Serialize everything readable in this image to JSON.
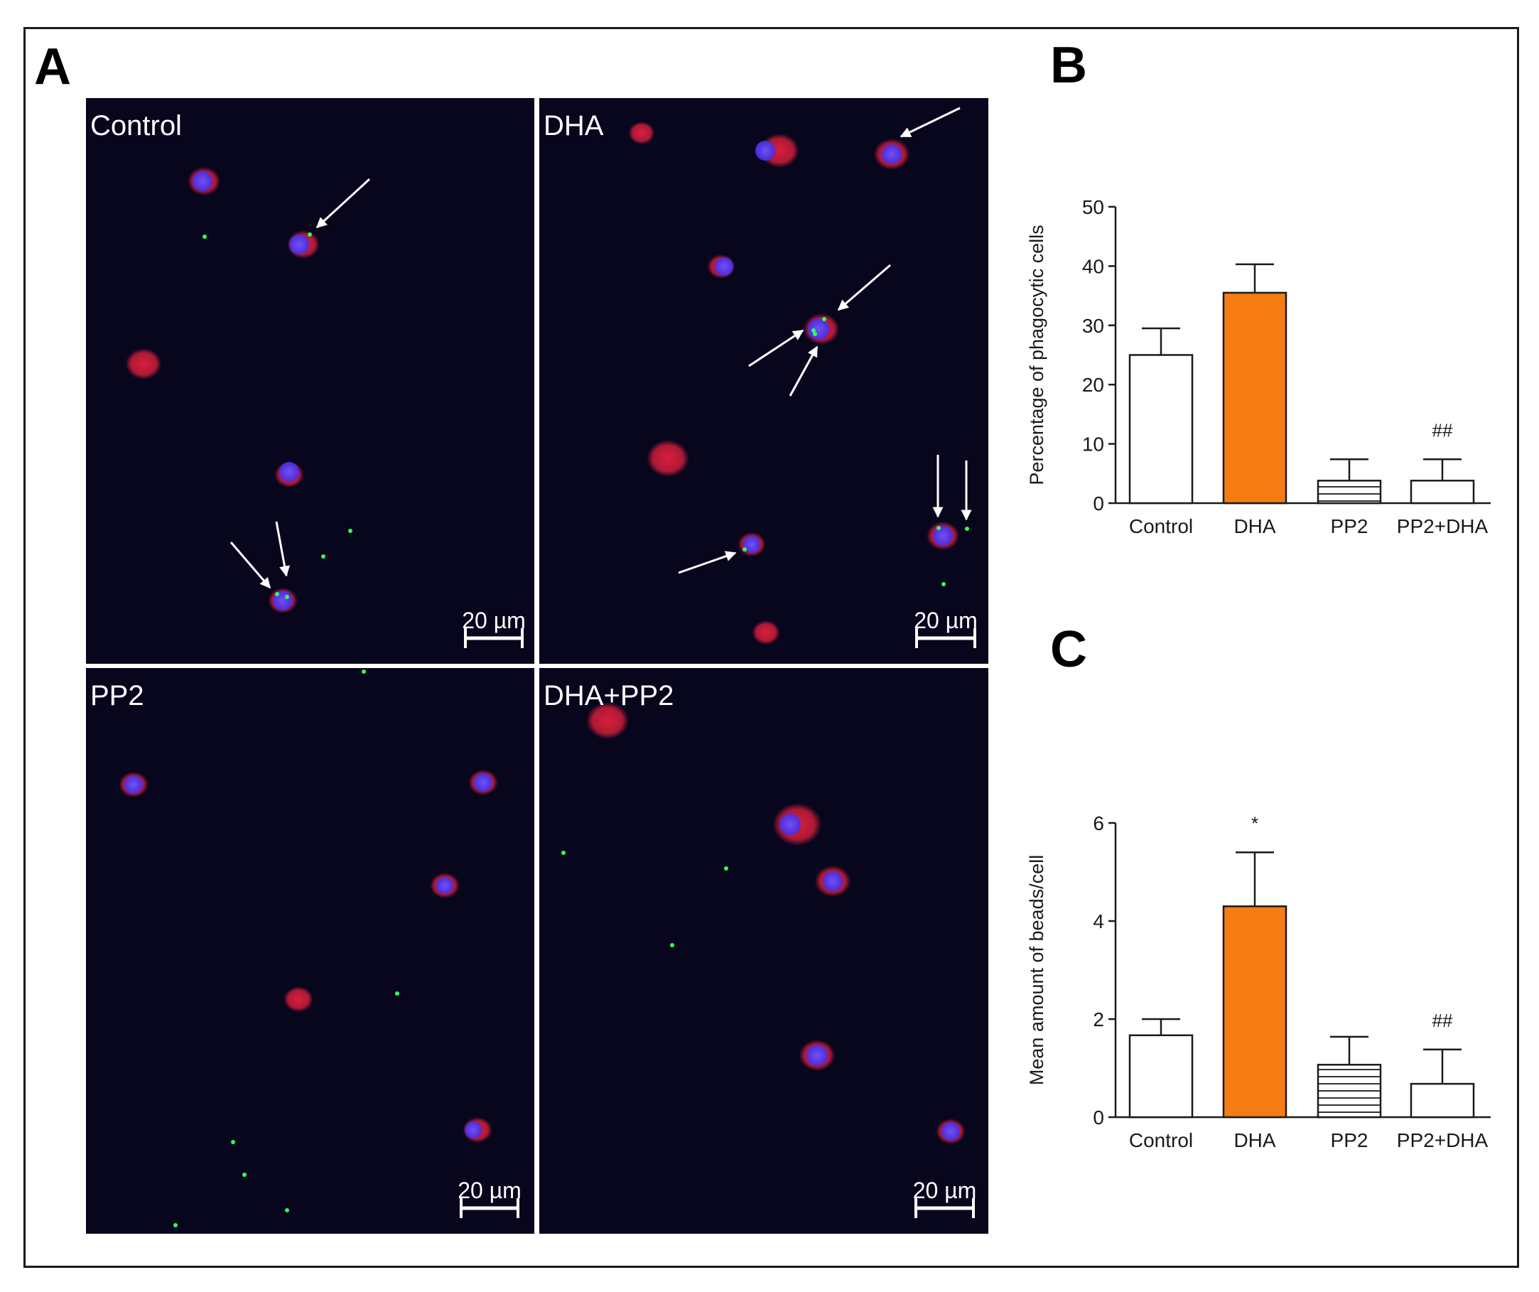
{
  "figure": {
    "panel_labels": {
      "a": "A",
      "b": "B",
      "c": "C"
    },
    "micrographs": [
      {
        "label": "Control",
        "scale_bar": "20 µm"
      },
      {
        "label": "DHA",
        "scale_bar": "20 µm"
      },
      {
        "label": "PP2",
        "scale_bar": "20 µm"
      },
      {
        "label": "DHA+PP2",
        "scale_bar": "20 µm"
      }
    ]
  },
  "colors": {
    "background_micrograph": "#07061d",
    "nucleus": "#4a2bdc",
    "cytoplasm": "#d81e3c",
    "bead": "#33ff55",
    "bar_highlight": "#f47c13",
    "axis": "#1a1a1a"
  },
  "chart_data": [
    {
      "type": "bar",
      "panel": "B",
      "categories": [
        "Control",
        "DHA",
        "PP2",
        "PP2+DHA"
      ],
      "values": [
        25,
        35.5,
        3.8,
        3.8
      ],
      "errors": [
        4.5,
        4.8,
        3.6,
        3.6
      ],
      "bar_fills": [
        "white",
        "orange",
        "horizontal-lines",
        "white"
      ],
      "annotations": [
        "",
        "",
        "",
        "##"
      ],
      "title": "",
      "xlabel": "",
      "ylabel": "Percentage of phagocytic cells",
      "ylim": [
        0,
        50
      ],
      "yticks": [
        0,
        10,
        20,
        30,
        40,
        50
      ],
      "ytick_labels": [
        "0",
        "10",
        "20",
        "30",
        "40",
        "50"
      ]
    },
    {
      "type": "bar",
      "panel": "C",
      "categories": [
        "Control",
        "DHA",
        "PP2",
        "PP2+DHA"
      ],
      "values": [
        1.67,
        4.3,
        1.07,
        0.68
      ],
      "errors": [
        0.33,
        1.1,
        0.57,
        0.7
      ],
      "bar_fills": [
        "white",
        "orange",
        "horizontal-lines",
        "white"
      ],
      "annotations": [
        "",
        "*",
        "",
        "##"
      ],
      "title": "",
      "xlabel": "",
      "ylabel": "Mean amount of beads/cell",
      "ylim": [
        0,
        6
      ],
      "yticks": [
        0,
        2,
        4,
        6
      ],
      "ytick_labels": [
        "0",
        "2",
        "4",
        "6"
      ]
    }
  ]
}
